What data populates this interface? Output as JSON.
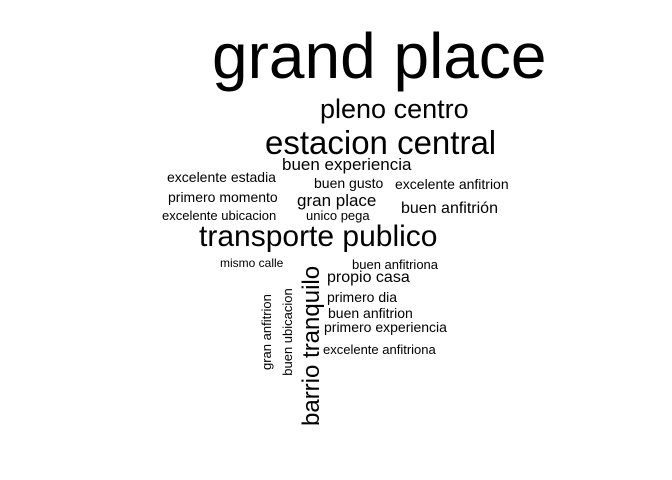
{
  "words": {
    "grand_place": "grand place",
    "pleno_centro": "pleno centro",
    "estacion_central": "estacion central",
    "buen_experiencia": "buen experiencia",
    "excelente_estadia": "excelente estadia",
    "buen_gusto": "buen gusto",
    "excelente_anfitrion": "excelente anfitrion",
    "primero_momento": "primero momento",
    "gran_place": "gran place",
    "buen_anfitrion_accent": "buen anfitrión",
    "excelente_ubicacion": "excelente ubicacion",
    "unico_pega": "unico pega",
    "transporte_publico": "transporte publico",
    "mismo_calle": "mismo calle",
    "buen_anfitriona": "buen anfitriona",
    "propio_casa": "propio casa",
    "primero_dia": "primero dia",
    "buen_anfitrion": "buen anfitrion",
    "primero_experiencia": "primero experiencia",
    "excelente_anfitriona": "excelente anfitriona",
    "barrio_tranquilo": "barrio tranquilo",
    "gran_anfitrion": "gran anfitrion",
    "buen_ubicacion": "buen ubicacion"
  },
  "colors": {
    "text": "#000000",
    "background": "#ffffff"
  }
}
